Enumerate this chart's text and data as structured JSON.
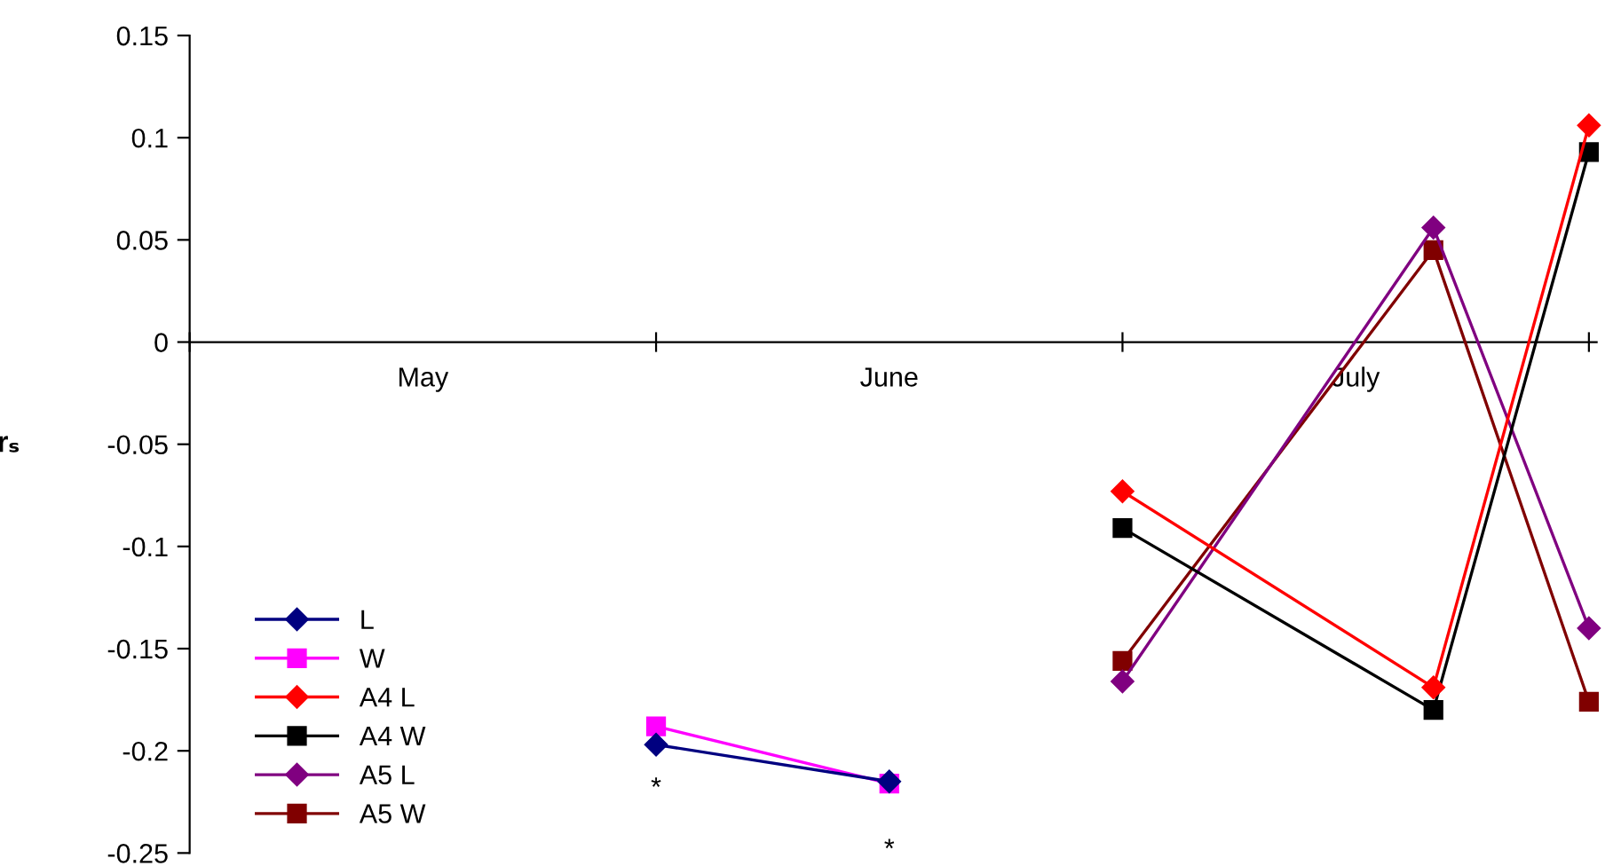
{
  "chart_data": {
    "type": "line",
    "ylabel": "rₛ",
    "categories": [
      null,
      null,
      null,
      "May",
      null,
      null,
      null,
      null,
      null,
      "June",
      null,
      null,
      null,
      null,
      null,
      "July",
      null,
      null,
      null
    ],
    "ylim": [
      -0.25,
      0.15
    ],
    "yticks": [
      -0.25,
      -0.2,
      -0.15,
      -0.1,
      -0.05,
      0,
      0.05,
      0.1,
      0.15
    ],
    "grid": false,
    "legend": "bottom left",
    "series": [
      {
        "name": "L",
        "color": "#000080",
        "marker": "diamond",
        "values": [
          null,
          null,
          null,
          null,
          null,
          null,
          -0.197,
          null,
          null,
          -0.215,
          null,
          null,
          null,
          null,
          null,
          null,
          null,
          null,
          null
        ]
      },
      {
        "name": "W",
        "color": "#ff00ff",
        "marker": "square",
        "values": [
          null,
          null,
          null,
          null,
          null,
          null,
          -0.188,
          null,
          null,
          -0.216,
          null,
          null,
          null,
          null,
          null,
          null,
          null,
          null,
          null
        ]
      },
      {
        "name": "A4 L",
        "color": "#ff0000",
        "marker": "diamond",
        "values": [
          null,
          null,
          null,
          null,
          null,
          null,
          null,
          null,
          null,
          null,
          null,
          null,
          -0.073,
          null,
          null,
          null,
          -0.169,
          null,
          0.106
        ]
      },
      {
        "name": "A4 W",
        "color": "#000000",
        "marker": "square",
        "values": [
          null,
          null,
          null,
          null,
          null,
          null,
          null,
          null,
          null,
          null,
          null,
          null,
          -0.091,
          null,
          null,
          null,
          -0.18,
          null,
          0.093
        ]
      },
      {
        "name": "A5 L",
        "color": "#800080",
        "marker": "diamond",
        "values": [
          null,
          null,
          null,
          null,
          null,
          null,
          null,
          null,
          null,
          null,
          null,
          null,
          -0.166,
          null,
          null,
          null,
          0.056,
          null,
          -0.14
        ]
      },
      {
        "name": "A5 W",
        "color": "#800000",
        "marker": "square",
        "values": [
          null,
          null,
          null,
          null,
          null,
          null,
          null,
          null,
          null,
          null,
          null,
          null,
          -0.156,
          null,
          null,
          null,
          0.045,
          null,
          -0.176
        ]
      }
    ],
    "annotations": [
      "*",
      "*"
    ]
  }
}
